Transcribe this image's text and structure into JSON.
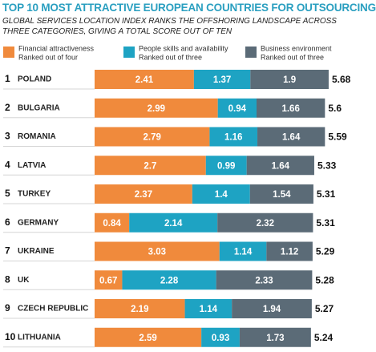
{
  "chart_data": {
    "type": "stacked-bar-horizontal",
    "title": "TOP 10 MOST ATTRACTIVE EUROPEAN COUNTRIES FOR OUTSOURCING",
    "subtitle": "GLOBAL SERVICES LOCATION INDEX RANKS THE OFFSHORING LANDSCAPE ACROSS THREE CATEGORIES, GIVING A TOTAL SCORE OUT OF TEN",
    "ranks": [
      "1",
      "2",
      "3",
      "4",
      "5",
      "6",
      "7",
      "8",
      "9",
      "10"
    ],
    "categories": [
      "POLAND",
      "BULGARIA",
      "ROMANIA",
      "LATVIA",
      "TURKEY",
      "GERMANY",
      "UKRAINE",
      "UK",
      "CZECH REPUBLIC",
      "LITHUANIA"
    ],
    "series": [
      {
        "name": "Financial attractiveness",
        "note": "Ranked out of four",
        "color": "#f08a3c",
        "values": [
          2.41,
          2.99,
          2.79,
          2.7,
          2.37,
          0.84,
          3.03,
          0.67,
          2.19,
          2.59
        ]
      },
      {
        "name": "People skills and availability",
        "note": "Ranked out of three",
        "color": "#1ea3c3",
        "values": [
          1.37,
          0.94,
          1.16,
          0.99,
          1.4,
          2.14,
          1.14,
          2.28,
          1.14,
          0.93
        ]
      },
      {
        "name": "Business environment",
        "note": "Ranked out of three",
        "color": "#5b6b77",
        "values": [
          1.9,
          1.66,
          1.64,
          1.64,
          1.54,
          2.32,
          1.12,
          2.33,
          1.94,
          1.73
        ]
      }
    ],
    "totals": [
      5.68,
      5.6,
      5.59,
      5.33,
      5.31,
      5.31,
      5.29,
      5.28,
      5.27,
      5.24
    ]
  }
}
